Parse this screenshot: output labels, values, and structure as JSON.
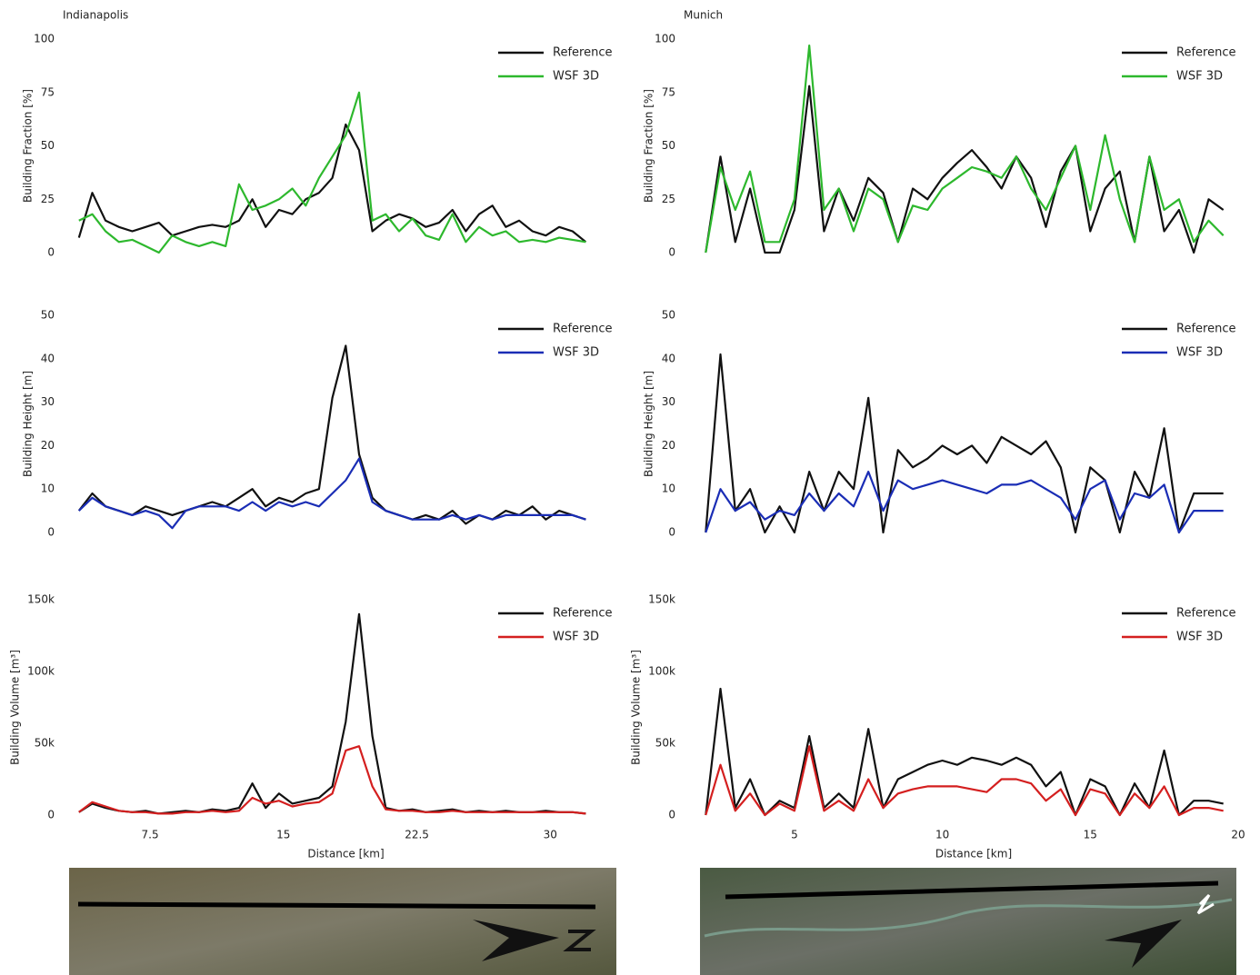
{
  "chart_data": [
    {
      "type": "line",
      "title": "Indianapolis",
      "y_label": "Building Fraction [%]",
      "x": [
        3.5,
        4.25,
        5,
        5.75,
        6.5,
        7.25,
        8,
        8.75,
        9.5,
        10.25,
        11,
        11.75,
        12.5,
        13.25,
        14,
        14.75,
        15.5,
        16.25,
        17,
        17.75,
        18.5,
        19.25,
        20,
        20.75,
        21.5,
        22.25,
        23,
        23.75,
        24.5,
        25.25,
        26,
        26.75,
        27.5,
        28.25,
        29,
        29.75,
        30.5,
        31.25,
        32
      ],
      "series": [
        {
          "name": "Reference",
          "color": "#111111",
          "values": [
            7,
            28,
            15,
            12,
            10,
            12,
            14,
            8,
            10,
            12,
            13,
            12,
            15,
            25,
            12,
            20,
            18,
            25,
            28,
            35,
            60,
            48,
            10,
            15,
            18,
            16,
            12,
            14,
            20,
            10,
            18,
            22,
            12,
            15,
            10,
            8,
            12,
            10,
            5
          ]
        },
        {
          "name": "WSF 3D",
          "color": "#2db82d",
          "values": [
            15,
            18,
            10,
            5,
            6,
            3,
            0,
            8,
            5,
            3,
            5,
            3,
            32,
            20,
            22,
            25,
            30,
            22,
            35,
            45,
            55,
            75,
            15,
            18,
            10,
            16,
            8,
            6,
            18,
            5,
            12,
            8,
            10,
            5,
            6,
            5,
            7,
            6,
            5
          ]
        }
      ],
      "xlim": [
        3,
        33
      ],
      "ylim": [
        0,
        100
      ],
      "yticks": [
        0,
        25,
        50,
        75,
        100
      ],
      "grid": true,
      "legend": "top-right"
    },
    {
      "type": "line",
      "title": "Munich",
      "y_label": "Building Fraction [%]",
      "x": [
        2,
        2.5,
        3,
        3.5,
        4,
        4.5,
        5,
        5.5,
        6,
        6.5,
        7,
        7.5,
        8,
        8.5,
        9,
        9.5,
        10,
        10.5,
        11,
        11.5,
        12,
        12.5,
        13,
        13.5,
        14,
        14.5,
        15,
        15.5,
        16,
        16.5,
        17,
        17.5,
        18,
        18.5,
        19,
        19.5
      ],
      "series": [
        {
          "name": "Reference",
          "color": "#111111",
          "values": [
            0,
            45,
            5,
            30,
            0,
            0,
            20,
            78,
            10,
            30,
            15,
            35,
            28,
            5,
            30,
            25,
            35,
            42,
            48,
            40,
            30,
            45,
            35,
            12,
            38,
            50,
            10,
            30,
            38,
            5,
            45,
            10,
            20,
            0,
            25,
            20
          ]
        },
        {
          "name": "WSF 3D",
          "color": "#2db82d",
          "values": [
            0,
            40,
            20,
            38,
            5,
            5,
            25,
            97,
            20,
            30,
            10,
            30,
            25,
            5,
            22,
            20,
            30,
            35,
            40,
            38,
            35,
            45,
            30,
            20,
            35,
            50,
            20,
            55,
            25,
            5,
            45,
            20,
            25,
            5,
            15,
            8
          ]
        }
      ],
      "xlim": [
        1.5,
        20
      ],
      "ylim": [
        0,
        100
      ],
      "yticks": [
        0,
        25,
        50,
        75,
        100
      ],
      "grid": true,
      "legend": "top-right"
    },
    {
      "type": "line",
      "y_label": "Building Height [m]",
      "x": [
        3.5,
        4.25,
        5,
        5.75,
        6.5,
        7.25,
        8,
        8.75,
        9.5,
        10.25,
        11,
        11.75,
        12.5,
        13.25,
        14,
        14.75,
        15.5,
        16.25,
        17,
        17.75,
        18.5,
        19.25,
        20,
        20.75,
        21.5,
        22.25,
        23,
        23.75,
        24.5,
        25.25,
        26,
        26.75,
        27.5,
        28.25,
        29,
        29.75,
        30.5,
        31.25,
        32
      ],
      "series": [
        {
          "name": "Reference",
          "color": "#111111",
          "values": [
            5,
            9,
            6,
            5,
            4,
            6,
            5,
            4,
            5,
            6,
            7,
            6,
            8,
            10,
            6,
            8,
            7,
            9,
            10,
            31,
            43,
            18,
            8,
            5,
            4,
            3,
            4,
            3,
            5,
            2,
            4,
            3,
            5,
            4,
            6,
            3,
            5,
            4,
            3
          ]
        },
        {
          "name": "WSF 3D",
          "color": "#1a2db5",
          "values": [
            5,
            8,
            6,
            5,
            4,
            5,
            4,
            1,
            5,
            6,
            6,
            6,
            5,
            7,
            5,
            7,
            6,
            7,
            6,
            9,
            12,
            17,
            7,
            5,
            4,
            3,
            3,
            3,
            4,
            3,
            4,
            3,
            4,
            4,
            4,
            4,
            4,
            4,
            3
          ]
        }
      ],
      "xlim": [
        3,
        33
      ],
      "ylim": [
        0,
        50
      ],
      "yticks": [
        0,
        10,
        20,
        30,
        40,
        50
      ],
      "grid": true,
      "legend": "top-right"
    },
    {
      "type": "line",
      "y_label": "Building Height [m]",
      "x": [
        2,
        2.5,
        3,
        3.5,
        4,
        4.5,
        5,
        5.5,
        6,
        6.5,
        7,
        7.5,
        8,
        8.5,
        9,
        9.5,
        10,
        10.5,
        11,
        11.5,
        12,
        12.5,
        13,
        13.5,
        14,
        14.5,
        15,
        15.5,
        16,
        16.5,
        17,
        17.5,
        18,
        18.5,
        19,
        19.5
      ],
      "series": [
        {
          "name": "Reference",
          "color": "#111111",
          "values": [
            0,
            41,
            5,
            10,
            0,
            6,
            0,
            14,
            5,
            14,
            10,
            31,
            0,
            19,
            15,
            17,
            20,
            18,
            20,
            16,
            22,
            20,
            18,
            21,
            15,
            0,
            15,
            12,
            0,
            14,
            8,
            24,
            0,
            9,
            9,
            9
          ]
        },
        {
          "name": "WSF 3D",
          "color": "#1a2db5",
          "values": [
            0,
            10,
            5,
            7,
            3,
            5,
            4,
            9,
            5,
            9,
            6,
            14,
            5,
            12,
            10,
            11,
            12,
            11,
            10,
            9,
            11,
            11,
            12,
            10,
            8,
            3,
            10,
            12,
            3,
            9,
            8,
            11,
            0,
            5,
            5,
            5
          ]
        }
      ],
      "xlim": [
        1.5,
        20
      ],
      "ylim": [
        0,
        50
      ],
      "yticks": [
        0,
        10,
        20,
        30,
        40,
        50
      ],
      "grid": true,
      "legend": "top-right"
    },
    {
      "type": "line",
      "y_label": "Building Volume [m³]",
      "x_label": "Distance [km]",
      "x": [
        3.5,
        4.25,
        5,
        5.75,
        6.5,
        7.25,
        8,
        8.75,
        9.5,
        10.25,
        11,
        11.75,
        12.5,
        13.25,
        14,
        14.75,
        15.5,
        16.25,
        17,
        17.75,
        18.5,
        19.25,
        20,
        20.75,
        21.5,
        22.25,
        23,
        23.75,
        24.5,
        25.25,
        26,
        26.75,
        27.5,
        28.25,
        29,
        29.75,
        30.5,
        31.25,
        32
      ],
      "series": [
        {
          "name": "Reference",
          "color": "#111111",
          "values": [
            2000,
            8000,
            5000,
            3000,
            2000,
            3000,
            1000,
            2000,
            3000,
            2000,
            4000,
            3000,
            5000,
            22000,
            5000,
            15000,
            8000,
            10000,
            12000,
            20000,
            65000,
            140000,
            55000,
            5000,
            3000,
            4000,
            2000,
            3000,
            4000,
            2000,
            3000,
            2000,
            3000,
            2000,
            2000,
            3000,
            2000,
            2000,
            1000
          ]
        },
        {
          "name": "WSF 3D",
          "color": "#d41f1f",
          "values": [
            2000,
            9000,
            6000,
            3000,
            2000,
            2000,
            1000,
            1000,
            2000,
            2000,
            3000,
            2000,
            3000,
            12000,
            8000,
            10000,
            6000,
            8000,
            9000,
            15000,
            45000,
            48000,
            20000,
            4000,
            3000,
            3000,
            2000,
            2000,
            3000,
            2000,
            2000,
            2000,
            2000,
            2000,
            2000,
            2000,
            2000,
            2000,
            1000
          ]
        }
      ],
      "xlim": [
        3,
        33
      ],
      "xticks": [
        7.5,
        15,
        22.5,
        30
      ],
      "ylim": [
        0,
        150000
      ],
      "yticks": [
        0,
        {
          "value": 50000,
          "label": "50k"
        },
        {
          "value": 100000,
          "label": "100k"
        },
        {
          "value": 150000,
          "label": "150k"
        }
      ],
      "grid": true,
      "legend": "top-right"
    },
    {
      "type": "line",
      "y_label": "Building Volume [m³]",
      "x_label": "Distance [km]",
      "x": [
        2,
        2.5,
        3,
        3.5,
        4,
        4.5,
        5,
        5.5,
        6,
        6.5,
        7,
        7.5,
        8,
        8.5,
        9,
        9.5,
        10,
        10.5,
        11,
        11.5,
        12,
        12.5,
        13,
        13.5,
        14,
        14.5,
        15,
        15.5,
        16,
        16.5,
        17,
        17.5,
        18,
        18.5,
        19,
        19.5
      ],
      "series": [
        {
          "name": "Reference",
          "color": "#111111",
          "values": [
            0,
            88000,
            5000,
            25000,
            0,
            10000,
            5000,
            55000,
            5000,
            15000,
            5000,
            60000,
            5000,
            25000,
            30000,
            35000,
            38000,
            35000,
            40000,
            38000,
            35000,
            40000,
            35000,
            20000,
            30000,
            0,
            25000,
            20000,
            0,
            22000,
            5000,
            45000,
            0,
            10000,
            10000,
            8000
          ]
        },
        {
          "name": "WSF 3D",
          "color": "#d41f1f",
          "values": [
            0,
            35000,
            3000,
            15000,
            0,
            8000,
            3000,
            48000,
            3000,
            10000,
            3000,
            25000,
            5000,
            15000,
            18000,
            20000,
            20000,
            20000,
            18000,
            16000,
            25000,
            25000,
            22000,
            10000,
            18000,
            0,
            18000,
            15000,
            0,
            15000,
            5000,
            20000,
            0,
            5000,
            5000,
            3000
          ]
        }
      ],
      "xlim": [
        1.5,
        20
      ],
      "xticks": [
        5,
        10,
        15,
        20
      ],
      "ylim": [
        0,
        150000
      ],
      "yticks": [
        0,
        {
          "value": 50000,
          "label": "50k"
        },
        {
          "value": 100000,
          "label": "100k"
        },
        {
          "value": 150000,
          "label": "150k"
        }
      ],
      "grid": true,
      "legend": "top-right"
    }
  ]
}
